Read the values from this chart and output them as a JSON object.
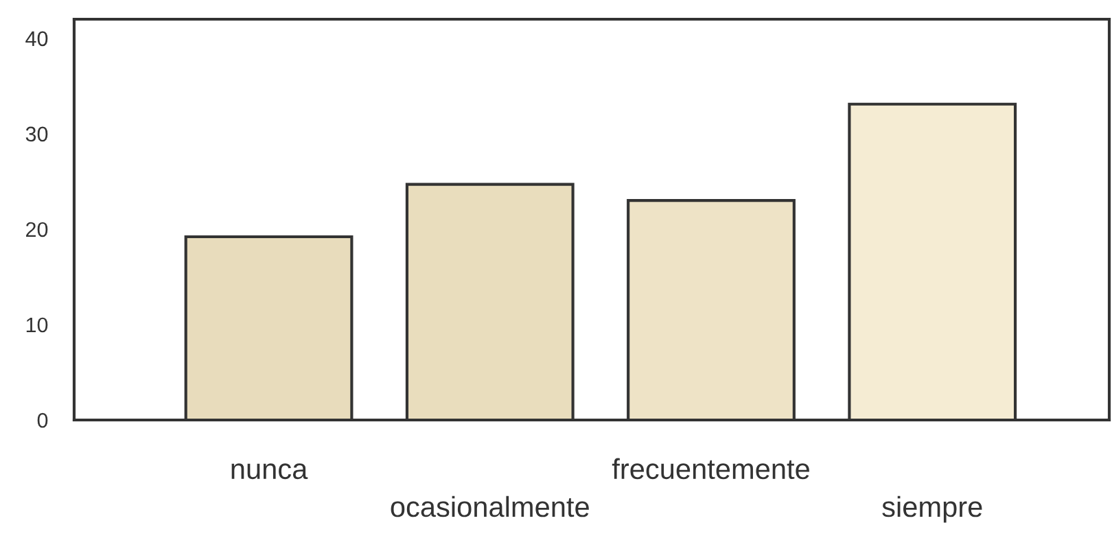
{
  "chart_data": {
    "type": "bar",
    "categories": [
      "nunca",
      "ocasionalmente",
      "frecuentemente",
      "siempre"
    ],
    "values": [
      19.2,
      24.7,
      23.0,
      33.1
    ],
    "colors": [
      "#e8dcbc",
      "#e9ddbd",
      "#eee3c6",
      "#f5ecd3"
    ],
    "ylim": [
      0,
      42
    ],
    "yticks": [
      0,
      10,
      20,
      30,
      40
    ],
    "grid": false
  }
}
